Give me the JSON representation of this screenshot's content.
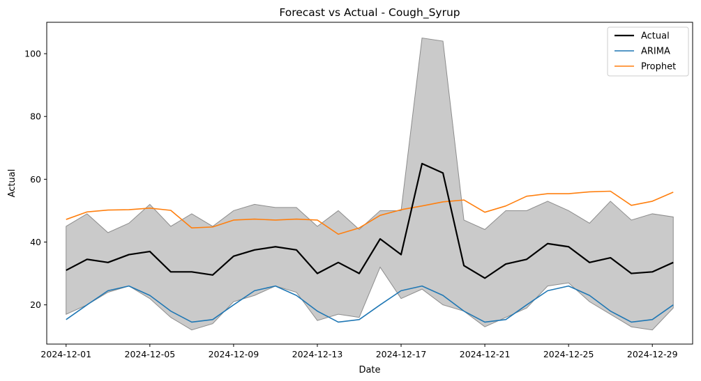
{
  "chart_data": {
    "type": "line",
    "title": "Forecast vs Actual - Cough_Syrup",
    "xlabel": "Date",
    "ylabel": "Actual",
    "x": [
      "2024-12-01",
      "2024-12-02",
      "2024-12-03",
      "2024-12-04",
      "2024-12-05",
      "2024-12-06",
      "2024-12-07",
      "2024-12-08",
      "2024-12-09",
      "2024-12-10",
      "2024-12-11",
      "2024-12-12",
      "2024-12-13",
      "2024-12-14",
      "2024-12-15",
      "2024-12-16",
      "2024-12-17",
      "2024-12-18",
      "2024-12-19",
      "2024-12-20",
      "2024-12-21",
      "2024-12-22",
      "2024-12-23",
      "2024-12-24",
      "2024-12-25",
      "2024-12-26",
      "2024-12-27",
      "2024-12-28",
      "2024-12-29",
      "2024-12-30"
    ],
    "xlim": [
      "2024-11-30T01:48",
      "2024-12-30T22:12"
    ],
    "ylim": [
      7.5,
      110
    ],
    "x_ticks": [
      "2024-12-01",
      "2024-12-05",
      "2024-12-09",
      "2024-12-13",
      "2024-12-17",
      "2024-12-21",
      "2024-12-25",
      "2024-12-29"
    ],
    "y_ticks": [
      20,
      40,
      60,
      80,
      100
    ],
    "band": {
      "lower": [
        17,
        20,
        24,
        26,
        22,
        16,
        12,
        14,
        21,
        23,
        26,
        24,
        15,
        17,
        16,
        32,
        22,
        25,
        20,
        18,
        13,
        16,
        19,
        26,
        27,
        21,
        17,
        13,
        12,
        19
      ],
      "upper": [
        45,
        49,
        43,
        46,
        52,
        45,
        49,
        45,
        50,
        52,
        51,
        51,
        45,
        50,
        44,
        50,
        50,
        105,
        104,
        47,
        44,
        50,
        50,
        53,
        50,
        46,
        53,
        47,
        49,
        48
      ],
      "color": "#b3b3b3"
    },
    "series": [
      {
        "name": "Actual",
        "color": "#000000",
        "width": 2.2,
        "values": [
          31,
          34.5,
          33.5,
          36,
          37,
          30.5,
          30.5,
          29.5,
          35.5,
          37.5,
          38.5,
          37.5,
          30,
          33.5,
          30,
          41,
          36,
          65,
          62,
          32.5,
          28.5,
          33,
          34.5,
          39.5,
          38.5,
          33.5,
          35,
          30,
          30.5,
          33.5
        ]
      },
      {
        "name": "ARIMA",
        "color": "#1f77b4",
        "width": 1.6,
        "values": [
          15.3,
          20,
          24.5,
          26,
          23,
          18,
          14.5,
          15.3,
          20,
          24.5,
          26,
          23,
          18,
          14.5,
          15.3,
          20,
          24.5,
          26,
          23,
          18,
          14.5,
          15.3,
          20,
          24.5,
          26,
          23,
          18,
          14.5,
          15.3,
          20
        ]
      },
      {
        "name": "Prophet",
        "color": "#ff7f0e",
        "width": 1.6,
        "values": [
          47.2,
          49.6,
          50.2,
          50.3,
          50.8,
          50.1,
          44.5,
          44.8,
          47,
          47.3,
          47,
          47.3,
          47,
          42.5,
          44.5,
          48.5,
          50.3,
          51.5,
          52.8,
          53.4,
          49.5,
          51.5,
          54.6,
          55.4,
          55.4,
          56,
          56.2,
          51.7,
          53,
          55.9
        ]
      }
    ],
    "legend": {
      "position": "top-right",
      "entries": [
        "Actual",
        "ARIMA",
        "Prophet"
      ]
    }
  }
}
